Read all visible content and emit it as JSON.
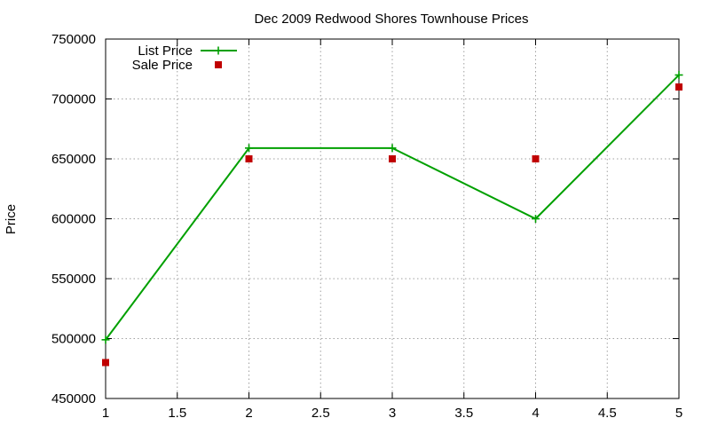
{
  "chart_data": {
    "type": "line",
    "title": "Dec 2009 Redwood Shores Townhouse Prices",
    "xlabel": "",
    "ylabel": "Price",
    "xlim": [
      1,
      5
    ],
    "ylim": [
      450000,
      750000
    ],
    "x_ticks": [
      "1",
      "1.5",
      "2",
      "2.5",
      "3",
      "3.5",
      "4",
      "4.5",
      "5"
    ],
    "y_ticks": [
      "450000",
      "500000",
      "550000",
      "600000",
      "650000",
      "700000",
      "750000"
    ],
    "grid": true,
    "legend_position": "top-left",
    "series": [
      {
        "name": "List Price",
        "style": "line-with-plus-markers",
        "color": "#00a000",
        "points": [
          {
            "x": 1,
            "y": 499000
          },
          {
            "x": 2,
            "y": 659000
          },
          {
            "x": 3,
            "y": 659000
          },
          {
            "x": 4,
            "y": 600000
          },
          {
            "x": 5,
            "y": 720000
          }
        ]
      },
      {
        "name": "Sale Price",
        "style": "square-markers",
        "color": "#c00000",
        "points": [
          {
            "x": 1,
            "y": 480000
          },
          {
            "x": 2,
            "y": 650000
          },
          {
            "x": 3,
            "y": 650000
          },
          {
            "x": 4,
            "y": 650000
          },
          {
            "x": 5,
            "y": 710000
          }
        ]
      }
    ]
  }
}
